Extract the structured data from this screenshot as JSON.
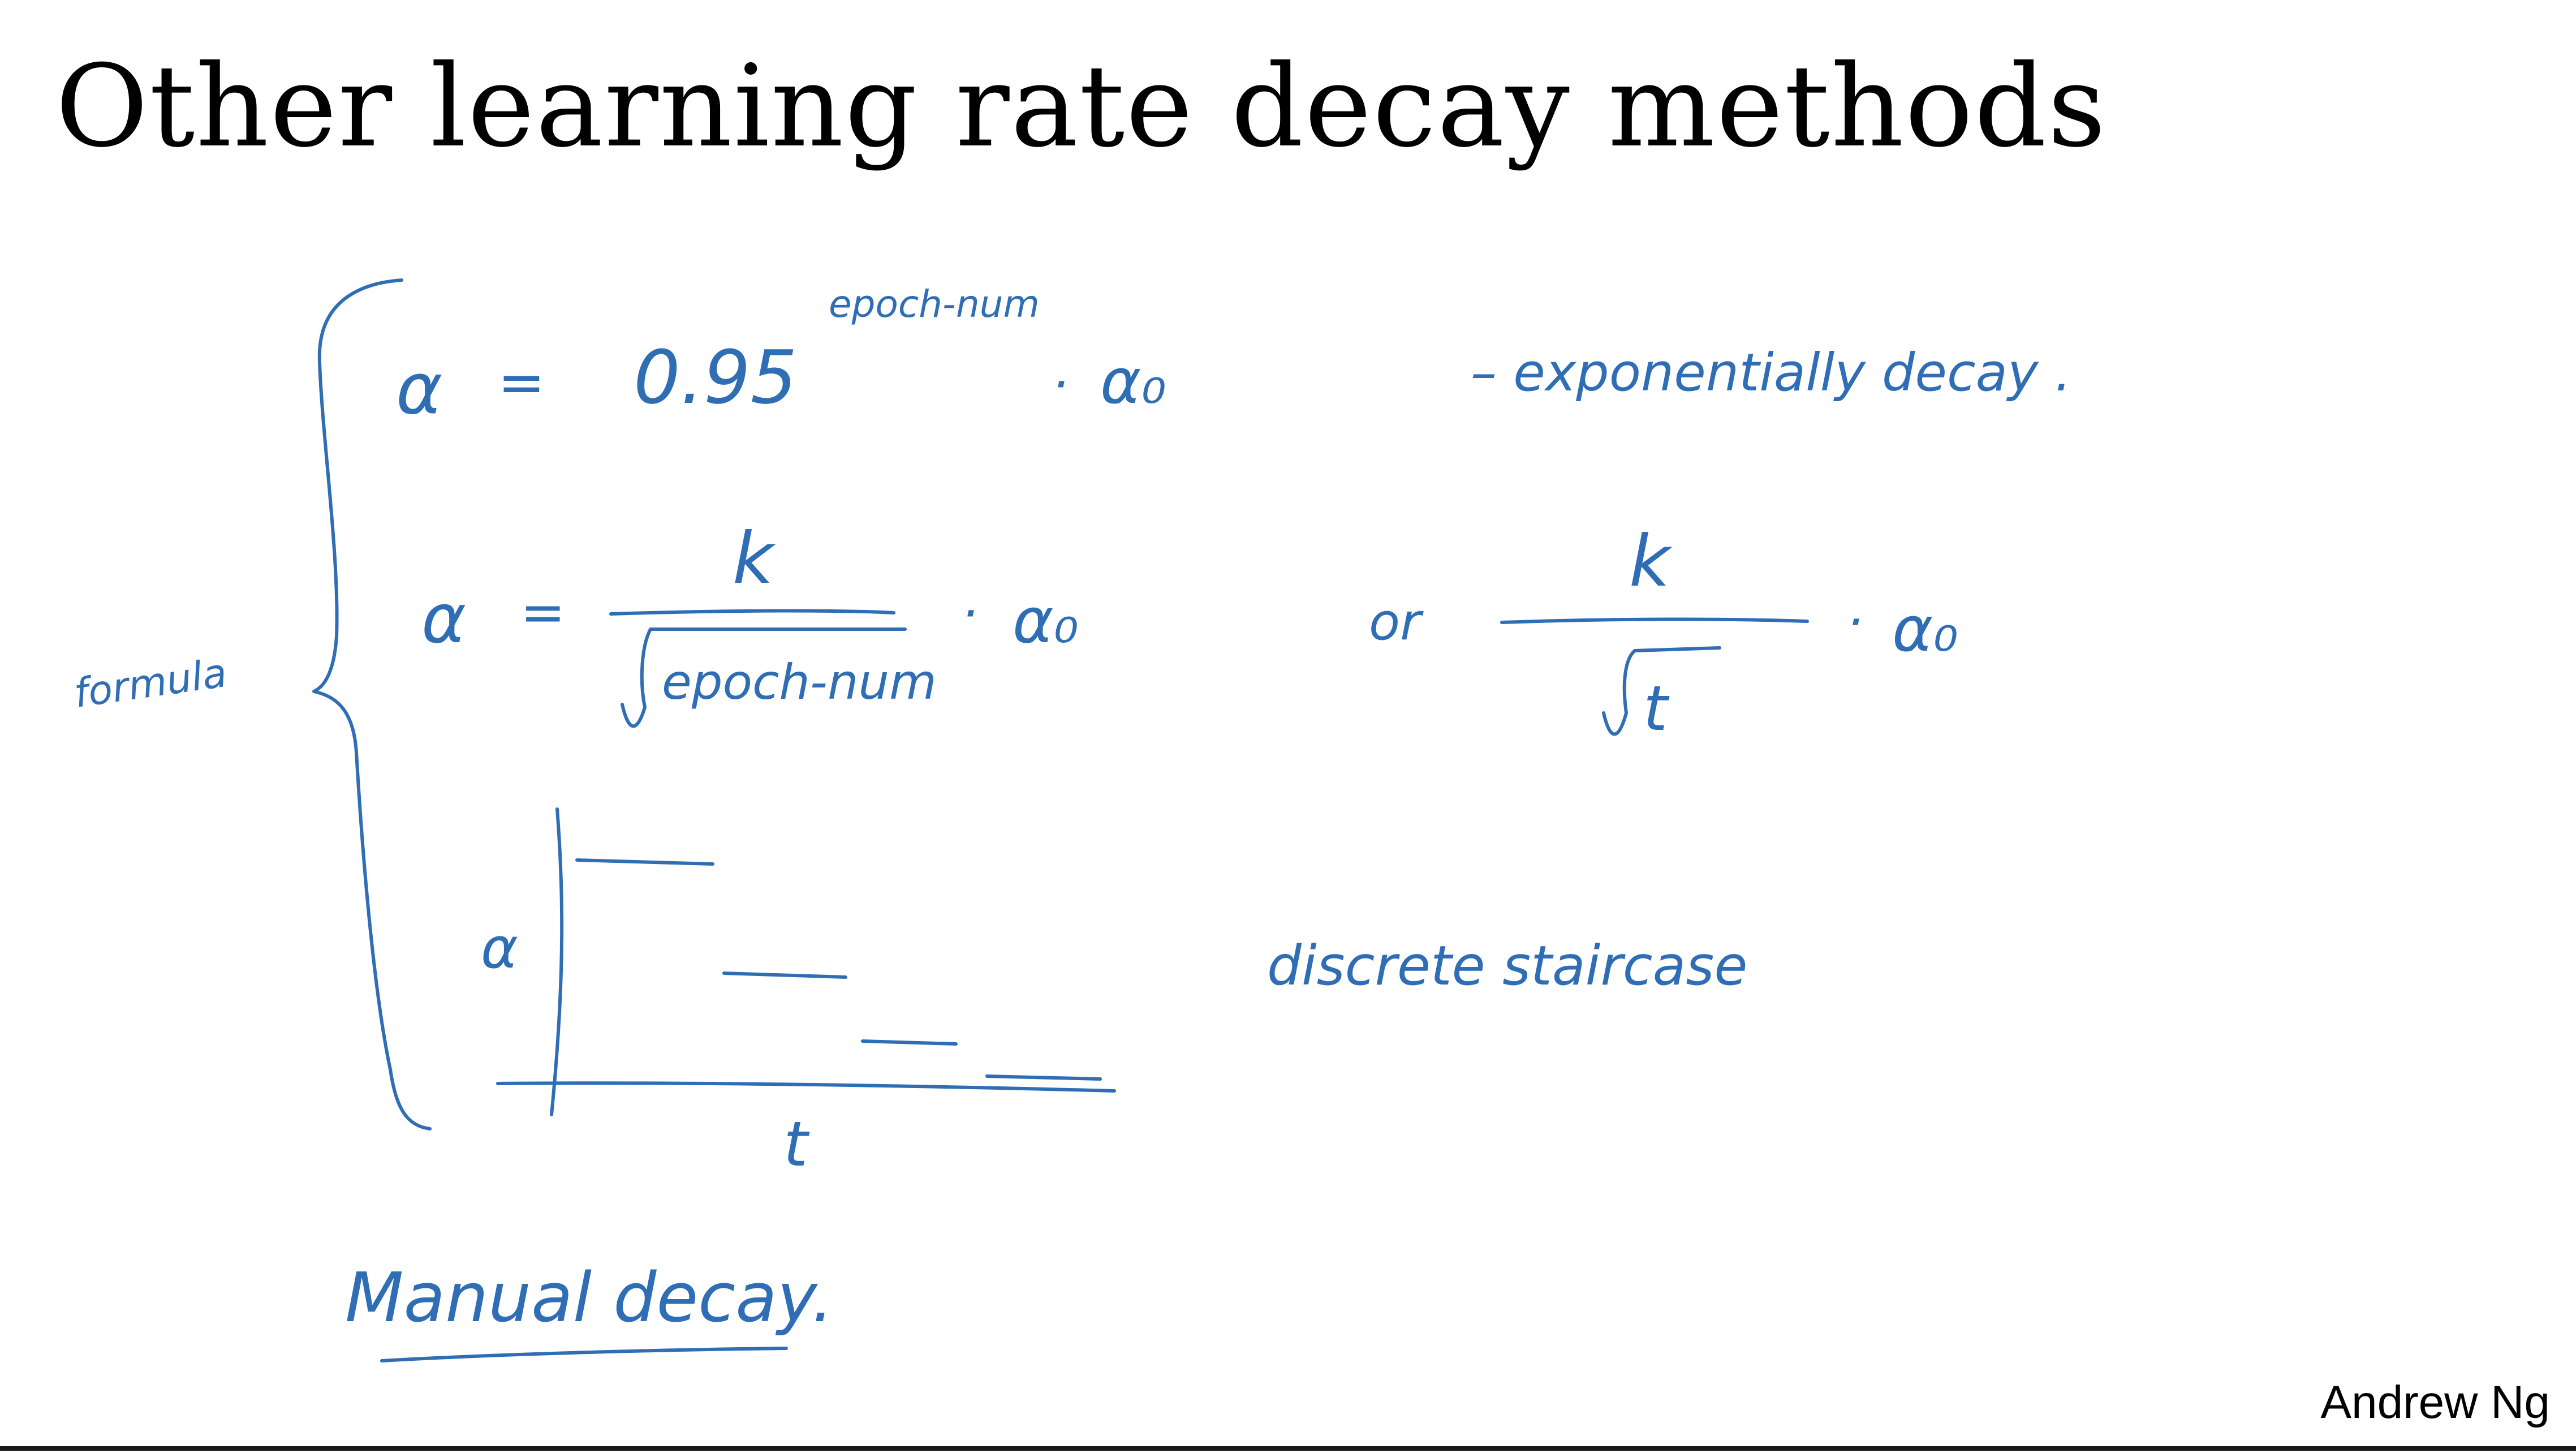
{
  "slide": {
    "title": "Other learning rate decay methods",
    "footer": "Andrew Ng"
  },
  "colors": {
    "ink": "#2f6db5",
    "title": "#000000",
    "background": "#ffffff"
  },
  "handwriting": {
    "formula_side_label": "formula",
    "alpha": "α",
    "equals": "=",
    "exp_base": "0.95",
    "exp_superscript": "epoch-num",
    "dot": "·",
    "alpha_zero": "α₀",
    "exp_note": "– exponentially decay .",
    "k": "k",
    "sqrt_epoch": "epoch-num",
    "or": "or",
    "sqrt_t": "t",
    "staircase_y_label": "α",
    "staircase_x_label": "t",
    "staircase_note": "discrete staircase",
    "manual": "Manual decay."
  }
}
